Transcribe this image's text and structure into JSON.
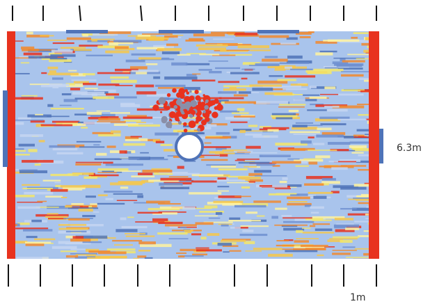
{
  "labels": {
    "height": "6.3m",
    "scale": "1m"
  }
}
